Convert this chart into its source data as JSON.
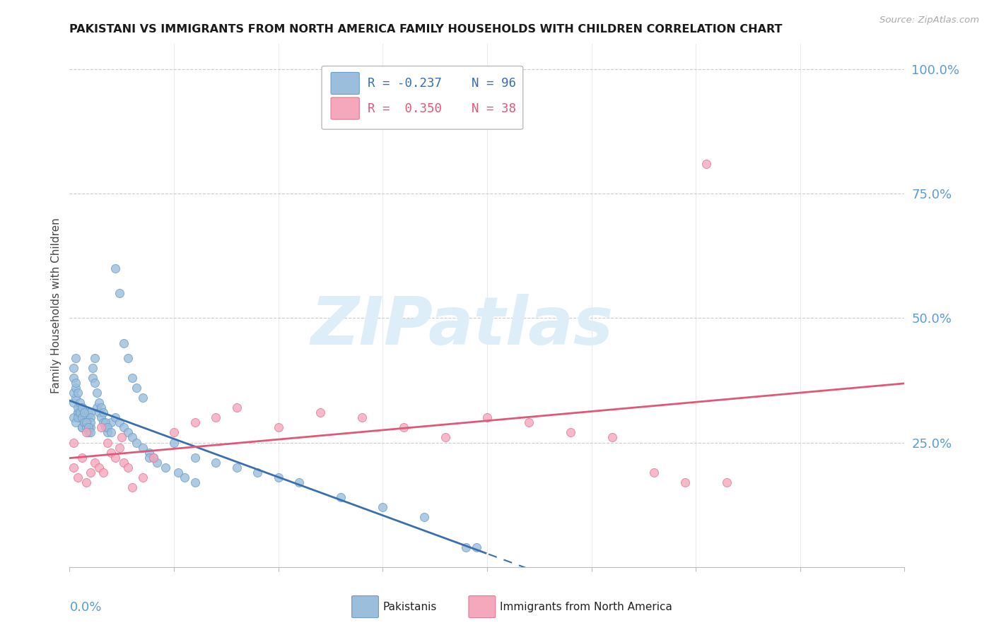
{
  "title": "PAKISTANI VS IMMIGRANTS FROM NORTH AMERICA FAMILY HOUSEHOLDS WITH CHILDREN CORRELATION CHART",
  "source": "Source: ZipAtlas.com",
  "ylabel": "Family Households with Children",
  "legend_pakistanis": "Pakistanis",
  "legend_immigrants": "Immigrants from North America",
  "r_pakistanis": -0.237,
  "n_pakistanis": 96,
  "r_immigrants": 0.35,
  "n_immigrants": 38,
  "blue_dot": "#9bbedd",
  "blue_edge": "#6a9dc8",
  "pink_dot": "#f5a8bc",
  "pink_edge": "#e07898",
  "blue_line": "#3a6fad",
  "pink_line": "#e05878",
  "background": "#ffffff",
  "grid_color": "#cccccc",
  "axis_color": "#5b9bd5",
  "watermark_color": "#ddeef8",
  "title_color": "#1a1a1a",
  "source_color": "#aaaaaa",
  "ylabel_color": "#444444",
  "watermark": "ZIPatlas",
  "xlim": [
    0.0,
    0.4
  ],
  "ylim": [
    0.0,
    1.05
  ],
  "yticks": [
    0.25,
    0.5,
    0.75,
    1.0
  ],
  "ytick_labels": [
    "25.0%",
    "50.0%",
    "75.0%",
    "100.0%"
  ],
  "pak_x": [
    0.002,
    0.003,
    0.004,
    0.005,
    0.006,
    0.007,
    0.008,
    0.009,
    0.01,
    0.002,
    0.003,
    0.004,
    0.005,
    0.006,
    0.007,
    0.008,
    0.009,
    0.01,
    0.002,
    0.003,
    0.004,
    0.005,
    0.006,
    0.007,
    0.008,
    0.009,
    0.01,
    0.002,
    0.003,
    0.004,
    0.005,
    0.006,
    0.007,
    0.008,
    0.009,
    0.01,
    0.002,
    0.003,
    0.004,
    0.005,
    0.006,
    0.007,
    0.008,
    0.009,
    0.01,
    0.011,
    0.012,
    0.013,
    0.014,
    0.015,
    0.016,
    0.017,
    0.018,
    0.02,
    0.011,
    0.012,
    0.013,
    0.014,
    0.015,
    0.016,
    0.017,
    0.018,
    0.02,
    0.022,
    0.024,
    0.026,
    0.028,
    0.03,
    0.032,
    0.035,
    0.038,
    0.04,
    0.022,
    0.024,
    0.026,
    0.028,
    0.03,
    0.032,
    0.035,
    0.05,
    0.06,
    0.07,
    0.08,
    0.09,
    0.1,
    0.11,
    0.13,
    0.15,
    0.17,
    0.19,
    0.038,
    0.042,
    0.046,
    0.052,
    0.055,
    0.06,
    0.195
  ],
  "pak_y": [
    0.3,
    0.29,
    0.31,
    0.32,
    0.28,
    0.29,
    0.3,
    0.31,
    0.28,
    0.33,
    0.34,
    0.31,
    0.3,
    0.32,
    0.29,
    0.28,
    0.3,
    0.31,
    0.35,
    0.36,
    0.3,
    0.31,
    0.28,
    0.3,
    0.29,
    0.28,
    0.3,
    0.38,
    0.37,
    0.32,
    0.31,
    0.3,
    0.29,
    0.28,
    0.27,
    0.29,
    0.4,
    0.42,
    0.35,
    0.33,
    0.32,
    0.31,
    0.29,
    0.28,
    0.27,
    0.38,
    0.37,
    0.32,
    0.31,
    0.3,
    0.29,
    0.28,
    0.27,
    0.29,
    0.4,
    0.42,
    0.35,
    0.33,
    0.32,
    0.31,
    0.29,
    0.28,
    0.27,
    0.3,
    0.29,
    0.28,
    0.27,
    0.26,
    0.25,
    0.24,
    0.23,
    0.22,
    0.6,
    0.55,
    0.45,
    0.42,
    0.38,
    0.36,
    0.34,
    0.25,
    0.22,
    0.21,
    0.2,
    0.19,
    0.18,
    0.17,
    0.14,
    0.12,
    0.1,
    0.04,
    0.22,
    0.21,
    0.2,
    0.19,
    0.18,
    0.17,
    0.04
  ],
  "imm_x": [
    0.002,
    0.004,
    0.006,
    0.008,
    0.01,
    0.012,
    0.014,
    0.016,
    0.018,
    0.02,
    0.022,
    0.024,
    0.026,
    0.028,
    0.03,
    0.035,
    0.04,
    0.05,
    0.06,
    0.07,
    0.08,
    0.1,
    0.12,
    0.14,
    0.16,
    0.18,
    0.2,
    0.22,
    0.24,
    0.26,
    0.28,
    0.295,
    0.305,
    0.315,
    0.002,
    0.008,
    0.015,
    0.025
  ],
  "imm_y": [
    0.2,
    0.18,
    0.22,
    0.17,
    0.19,
    0.21,
    0.2,
    0.19,
    0.25,
    0.23,
    0.22,
    0.24,
    0.21,
    0.2,
    0.16,
    0.18,
    0.22,
    0.27,
    0.29,
    0.3,
    0.32,
    0.28,
    0.31,
    0.3,
    0.28,
    0.26,
    0.3,
    0.29,
    0.27,
    0.26,
    0.19,
    0.17,
    0.81,
    0.17,
    0.25,
    0.27,
    0.28,
    0.26
  ]
}
